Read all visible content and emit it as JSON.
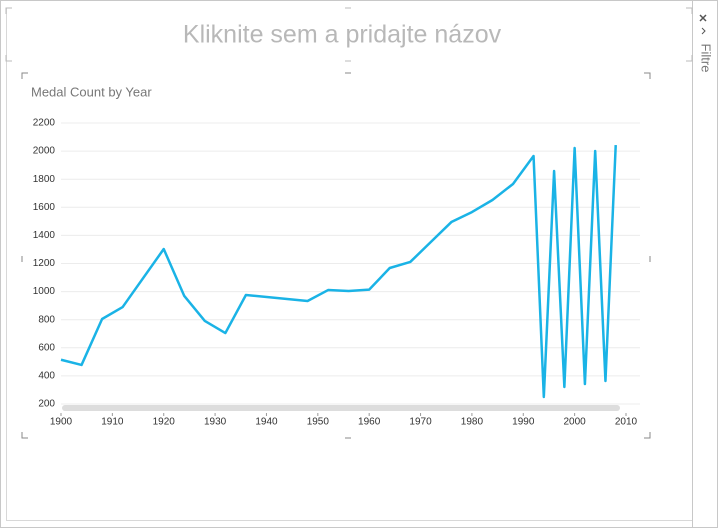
{
  "header": {
    "title": "Kliknite sem a pridajte názov"
  },
  "side_panel": {
    "label": "Filtre"
  },
  "chart_data": {
    "type": "line",
    "title": "Medal Count by Year",
    "x": [
      1900,
      1904,
      1908,
      1912,
      1920,
      1924,
      1928,
      1932,
      1936,
      1948,
      1952,
      1956,
      1960,
      1964,
      1968,
      1972,
      1976,
      1980,
      1984,
      1988,
      1992,
      1994,
      1996,
      1998,
      2000,
      2002,
      2004,
      2006,
      2008
    ],
    "series": [
      {
        "name": "Medal Count",
        "color": "#1ab3e6",
        "values": [
          515,
          478,
          805,
          890,
          1303,
          969,
          791,
          705,
          976,
          933,
          1011,
          1004,
          1014,
          1168,
          1211,
          1353,
          1495,
          1566,
          1652,
          1766,
          1965,
          250,
          1858,
          321,
          2022,
          342,
          2001,
          364,
          2043
        ]
      }
    ],
    "xlim": [
      1900,
      2010
    ],
    "xticks": [
      1900,
      1910,
      1920,
      1930,
      1940,
      1950,
      1960,
      1970,
      1980,
      1990,
      2000,
      2010
    ],
    "ylim": [
      200,
      2200
    ],
    "yticks": [
      200,
      400,
      600,
      800,
      1000,
      1200,
      1400,
      1600,
      1800,
      2000,
      2200
    ],
    "grid": true
  }
}
